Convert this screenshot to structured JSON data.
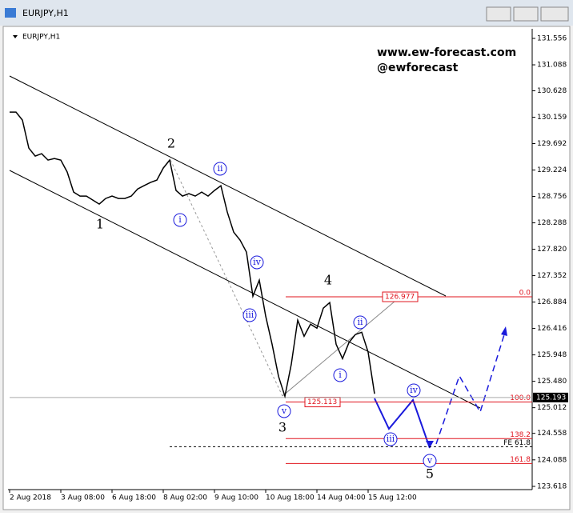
{
  "chart_data": {
    "type": "line",
    "title": "EURJPY,H1",
    "watermark": [
      "www.ew-forecast.com",
      "@ewforecast"
    ],
    "categories": [
      "2 Aug 2018",
      null,
      null,
      null,
      null,
      null,
      null,
      null,
      "3 Aug 08:00",
      null,
      null,
      null,
      null,
      null,
      null,
      null,
      "6 Aug 18:00",
      null,
      null,
      null,
      null,
      null,
      null,
      null,
      "8 Aug 02:00",
      null,
      null,
      null,
      null,
      null,
      null,
      null,
      "9 Aug 10:00",
      null,
      null,
      null,
      null,
      null,
      null,
      null,
      "10 Aug 18:00",
      null,
      null,
      null,
      null,
      null,
      null,
      null,
      "14 Aug 04:00",
      null,
      null,
      null,
      null,
      null,
      null,
      null,
      "15 Aug 12:00",
      null,
      null,
      null,
      null,
      null,
      null,
      null,
      null,
      null,
      null,
      null,
      null,
      null,
      null,
      null,
      null,
      null,
      null,
      null,
      null,
      null,
      null,
      null,
      null,
      null
    ],
    "values": [
      130.251,
      130.251,
      130.109,
      129.613,
      129.471,
      129.513,
      129.4,
      129.428,
      129.4,
      129.187,
      128.833,
      128.762,
      128.762,
      128.691,
      128.62,
      128.719,
      128.762,
      128.719,
      128.719,
      128.762,
      128.889,
      128.946,
      129.003,
      129.045,
      129.258,
      129.4,
      128.861,
      128.762,
      128.804,
      128.762,
      128.833,
      128.762,
      128.861,
      128.946,
      128.478,
      128.123,
      127.981,
      127.769,
      126.989,
      127.272,
      126.634,
      126.137,
      125.57,
      125.216,
      125.783,
      126.563,
      126.279,
      126.492,
      126.421,
      126.776,
      126.875,
      126.137,
      125.882,
      126.165,
      126.308,
      126.35,
      125.996,
      125.258,
      null,
      null,
      null,
      null,
      null,
      null,
      null,
      null,
      null,
      null,
      null,
      null,
      null,
      null,
      null,
      null,
      null,
      null,
      null,
      null,
      null,
      null,
      null,
      null
    ],
    "color": "#000000",
    "ylim": [
      123.561,
      131.698
    ],
    "yticks": [
      131.556,
      131.088,
      130.628,
      130.159,
      129.692,
      129.224,
      128.756,
      128.288,
      {
        "value": 127.82,
        "label": "127.820"
      },
      127.352,
      126.884,
      126.416,
      125.948,
      {
        "value": 125.48,
        "label": "125.480"
      },
      125.012,
      124.558,
      124.088,
      123.618
    ],
    "levels": [
      {
        "label": "0.0",
        "value": 126.977,
        "color": "#e0141e"
      },
      {
        "label": "100.0",
        "value": 125.113,
        "color": "#e0141e"
      },
      {
        "label": "138.2",
        "value": 124.464,
        "color": "#e0141e"
      },
      {
        "label": "FE 61.8",
        "value": 124.322,
        "color": "#000000"
      },
      {
        "label": "161.8",
        "value": 124.024,
        "color": "#e0141e"
      }
    ],
    "last_price": 125.193,
    "wave_labels": [
      "1",
      "2",
      "3",
      "4",
      "5"
    ],
    "subwave_labels": [
      "i",
      "ii",
      "iii",
      "iv",
      "v",
      "i",
      "ii",
      "iii",
      "iv",
      "v"
    ]
  }
}
